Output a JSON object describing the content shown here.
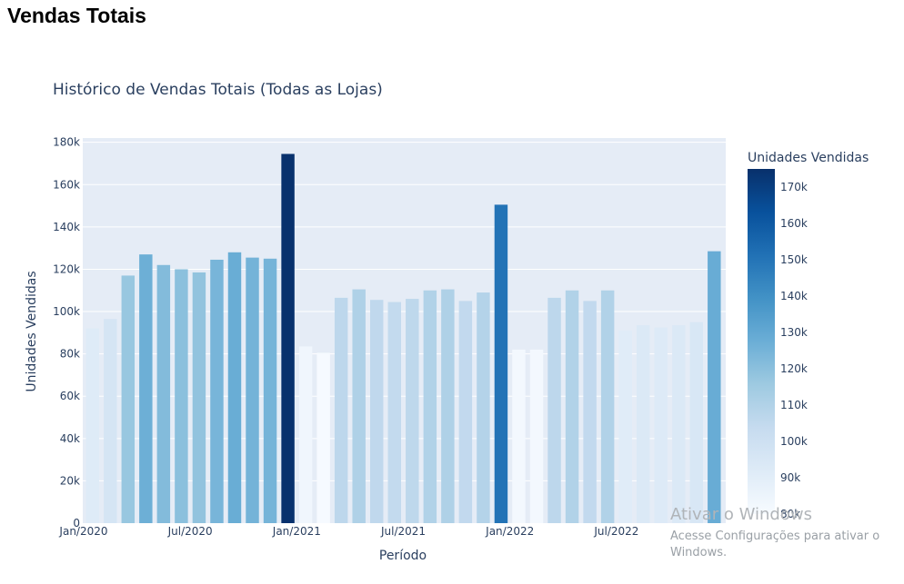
{
  "page": {
    "heading": "Vendas Totais"
  },
  "chart_data": {
    "type": "bar",
    "title": "Histórico de Vendas Totais (Todas as Lojas)",
    "xlabel": "Período",
    "ylabel": "Unidades Vendidas",
    "ylim": [
      0,
      182000
    ],
    "yticks": [
      0,
      20000,
      40000,
      60000,
      80000,
      100000,
      120000,
      140000,
      160000,
      180000
    ],
    "ytick_labels": [
      "0",
      "20k",
      "40k",
      "60k",
      "80k",
      "100k",
      "120k",
      "140k",
      "160k",
      "180k"
    ],
    "xtick_labels": [
      "Jan/2020",
      "Jul/2020",
      "Jan/2021",
      "Jul/2021",
      "Jan/2022",
      "Jul/2022"
    ],
    "grid": true,
    "categories": [
      "2020-01",
      "2020-02",
      "2020-03",
      "2020-04",
      "2020-05",
      "2020-06",
      "2020-07",
      "2020-08",
      "2020-09",
      "2020-10",
      "2020-11",
      "2020-12",
      "2021-01",
      "2021-02",
      "2021-03",
      "2021-04",
      "2021-05",
      "2021-06",
      "2021-07",
      "2021-08",
      "2021-09",
      "2021-10",
      "2021-11",
      "2021-12",
      "2022-01",
      "2022-02",
      "2022-03",
      "2022-04",
      "2022-05",
      "2022-06",
      "2022-07",
      "2022-08",
      "2022-09",
      "2022-10",
      "2022-11",
      "2022-12"
    ],
    "values": [
      92000,
      96500,
      117000,
      127000,
      122000,
      120000,
      118500,
      124500,
      128000,
      125500,
      125000,
      174500,
      83500,
      80500,
      106500,
      110500,
      105500,
      104500,
      106000,
      110000,
      110500,
      105000,
      109000,
      150500,
      82000,
      82000,
      106500,
      110000,
      105000,
      110000,
      91000,
      93500,
      92500,
      93500,
      95000,
      128500
    ],
    "colorbar": {
      "title": "Unidades Vendidas",
      "range": [
        80000,
        175000
      ],
      "ticks": [
        80000,
        90000,
        100000,
        110000,
        120000,
        130000,
        140000,
        150000,
        160000,
        170000
      ],
      "tick_labels": [
        "80k",
        "90k",
        "100k",
        "110k",
        "120k",
        "130k",
        "140k",
        "150k",
        "160k",
        "170k"
      ],
      "colorscale": [
        "#f7fbff",
        "#deebf7",
        "#c6dbef",
        "#9ecae1",
        "#6baed6",
        "#4292c6",
        "#2171b5",
        "#08519c",
        "#08306b"
      ]
    },
    "plot_bg": "#e5ecf6"
  },
  "watermark": {
    "title": "Ativar o Windows",
    "subtitle": "Acesse Configurações para ativar o Windows."
  }
}
